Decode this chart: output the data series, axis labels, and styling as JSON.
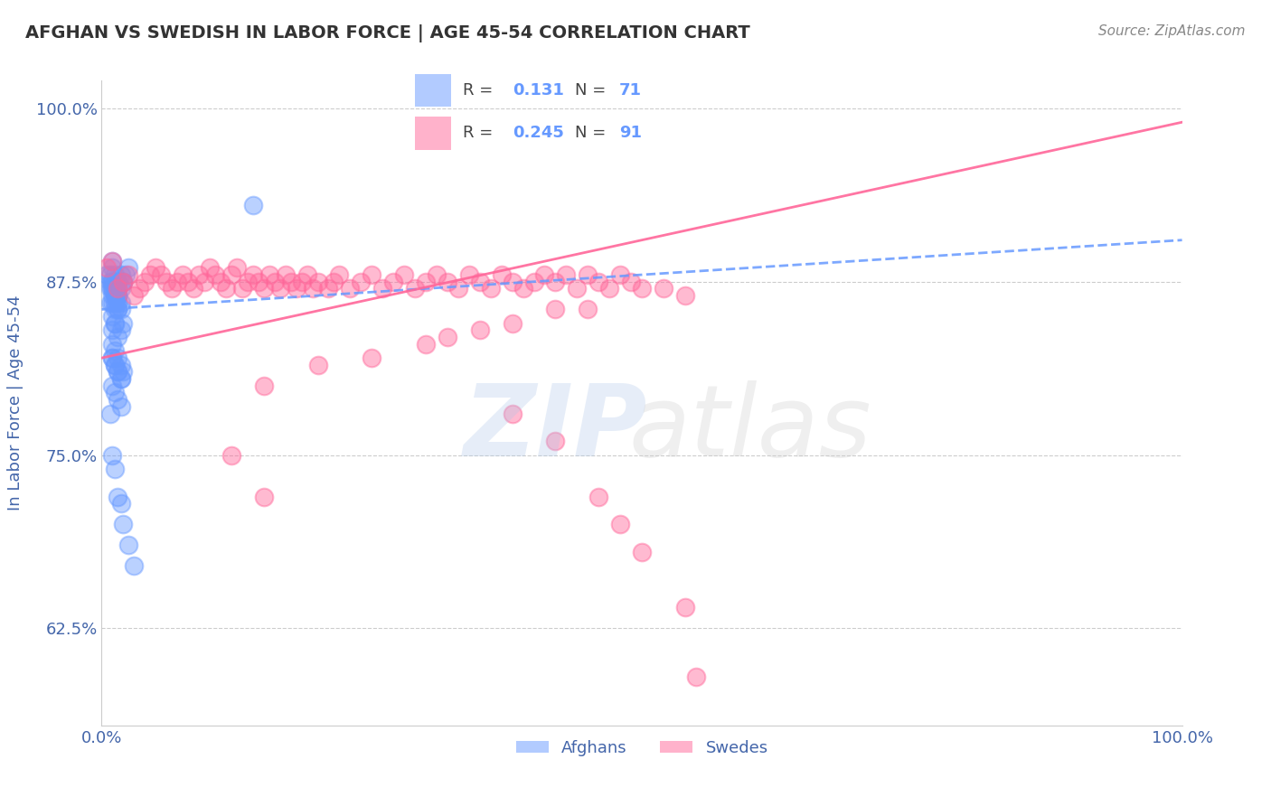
{
  "title": "AFGHAN VS SWEDISH IN LABOR FORCE | AGE 45-54 CORRELATION CHART",
  "source": "Source: ZipAtlas.com",
  "ylabel": "In Labor Force | Age 45-54",
  "r_afghan": 0.131,
  "n_afghan": 71,
  "r_swedish": 0.245,
  "n_swedish": 91,
  "xlim": [
    0.0,
    1.0
  ],
  "ylim": [
    0.555,
    1.02
  ],
  "yticks": [
    0.625,
    0.75,
    0.875,
    1.0
  ],
  "ytick_labels": [
    "62.5%",
    "75.0%",
    "87.5%",
    "100.0%"
  ],
  "xticks": [
    0.0,
    1.0
  ],
  "xtick_labels": [
    "0.0%",
    "100.0%"
  ],
  "afghan_color": "#6699ff",
  "swedish_color": "#ff6699",
  "background_color": "#ffffff",
  "title_color": "#333333",
  "axis_label_color": "#4466aa",
  "tick_color": "#4466aa",
  "grid_color": "#cccccc",
  "afghan_scatter_x": [
    0.005,
    0.008,
    0.01,
    0.012,
    0.015,
    0.018,
    0.02,
    0.022,
    0.025,
    0.01,
    0.012,
    0.015,
    0.008,
    0.01,
    0.012,
    0.015,
    0.018,
    0.02,
    0.01,
    0.012,
    0.015,
    0.01,
    0.012,
    0.015,
    0.018,
    0.01,
    0.012,
    0.015,
    0.008,
    0.01,
    0.012,
    0.015,
    0.01,
    0.012,
    0.015,
    0.018,
    0.01,
    0.012,
    0.015,
    0.008,
    0.01,
    0.012,
    0.015,
    0.018,
    0.02,
    0.01,
    0.012,
    0.015,
    0.018,
    0.01,
    0.012,
    0.015,
    0.018,
    0.02,
    0.01,
    0.012,
    0.015,
    0.018,
    0.01,
    0.012,
    0.015,
    0.018,
    0.008,
    0.01,
    0.012,
    0.015,
    0.018,
    0.02,
    0.025,
    0.03,
    0.14
  ],
  "afghan_scatter_y": [
    0.88,
    0.875,
    0.87,
    0.865,
    0.86,
    0.855,
    0.875,
    0.88,
    0.885,
    0.89,
    0.875,
    0.87,
    0.88,
    0.875,
    0.87,
    0.865,
    0.87,
    0.875,
    0.885,
    0.88,
    0.875,
    0.87,
    0.865,
    0.875,
    0.88,
    0.86,
    0.855,
    0.865,
    0.87,
    0.865,
    0.86,
    0.855,
    0.875,
    0.87,
    0.865,
    0.86,
    0.85,
    0.845,
    0.855,
    0.86,
    0.84,
    0.845,
    0.835,
    0.84,
    0.845,
    0.83,
    0.825,
    0.82,
    0.815,
    0.82,
    0.815,
    0.81,
    0.805,
    0.81,
    0.82,
    0.815,
    0.81,
    0.805,
    0.8,
    0.795,
    0.79,
    0.785,
    0.78,
    0.75,
    0.74,
    0.72,
    0.715,
    0.7,
    0.685,
    0.67,
    0.93
  ],
  "swedish_scatter_x": [
    0.005,
    0.01,
    0.015,
    0.02,
    0.025,
    0.03,
    0.035,
    0.04,
    0.045,
    0.05,
    0.055,
    0.06,
    0.065,
    0.07,
    0.075,
    0.08,
    0.085,
    0.09,
    0.095,
    0.1,
    0.105,
    0.11,
    0.115,
    0.12,
    0.125,
    0.13,
    0.135,
    0.14,
    0.145,
    0.15,
    0.155,
    0.16,
    0.165,
    0.17,
    0.175,
    0.18,
    0.185,
    0.19,
    0.195,
    0.2,
    0.21,
    0.215,
    0.22,
    0.23,
    0.24,
    0.25,
    0.26,
    0.27,
    0.28,
    0.29,
    0.3,
    0.31,
    0.32,
    0.33,
    0.34,
    0.35,
    0.36,
    0.37,
    0.38,
    0.39,
    0.4,
    0.41,
    0.42,
    0.43,
    0.44,
    0.45,
    0.46,
    0.47,
    0.48,
    0.49,
    0.5,
    0.42,
    0.35,
    0.3,
    0.25,
    0.2,
    0.15,
    0.52,
    0.54,
    0.45,
    0.38,
    0.32,
    0.38,
    0.42,
    0.46,
    0.5,
    0.54,
    0.48,
    0.12,
    0.15,
    0.55
  ],
  "swedish_scatter_y": [
    0.885,
    0.89,
    0.87,
    0.875,
    0.88,
    0.865,
    0.87,
    0.875,
    0.88,
    0.885,
    0.88,
    0.875,
    0.87,
    0.875,
    0.88,
    0.875,
    0.87,
    0.88,
    0.875,
    0.885,
    0.88,
    0.875,
    0.87,
    0.88,
    0.885,
    0.87,
    0.875,
    0.88,
    0.875,
    0.87,
    0.88,
    0.875,
    0.87,
    0.88,
    0.875,
    0.87,
    0.875,
    0.88,
    0.87,
    0.875,
    0.87,
    0.875,
    0.88,
    0.87,
    0.875,
    0.88,
    0.87,
    0.875,
    0.88,
    0.87,
    0.875,
    0.88,
    0.875,
    0.87,
    0.88,
    0.875,
    0.87,
    0.88,
    0.875,
    0.87,
    0.875,
    0.88,
    0.875,
    0.88,
    0.87,
    0.88,
    0.875,
    0.87,
    0.88,
    0.875,
    0.87,
    0.855,
    0.84,
    0.83,
    0.82,
    0.815,
    0.8,
    0.87,
    0.865,
    0.855,
    0.845,
    0.835,
    0.78,
    0.76,
    0.72,
    0.68,
    0.64,
    0.7,
    0.75,
    0.72,
    0.59
  ],
  "afghan_trendline_x": [
    0.0,
    1.0
  ],
  "afghan_trendline_y": [
    0.855,
    0.905
  ],
  "swedish_trendline_x": [
    0.0,
    1.0
  ],
  "swedish_trendline_y": [
    0.82,
    0.99
  ]
}
